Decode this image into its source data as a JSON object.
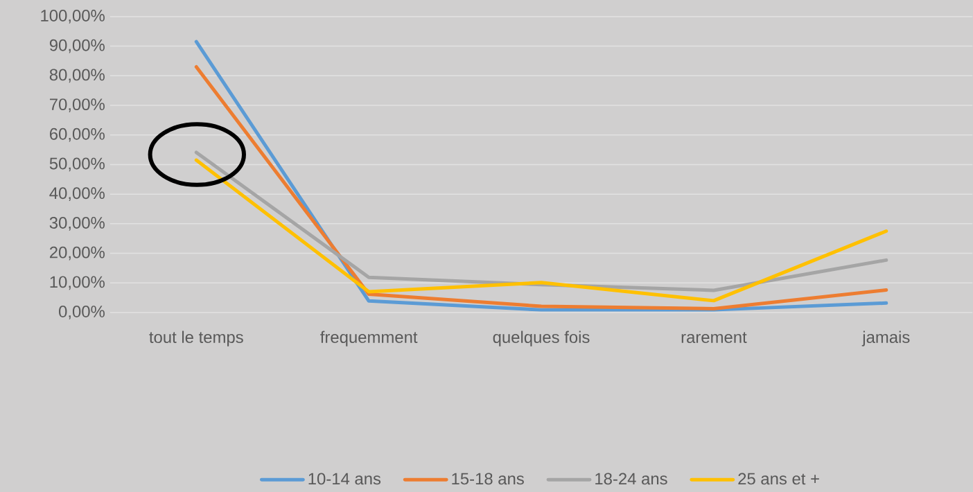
{
  "chart_data": {
    "type": "line",
    "categories": [
      "tout le temps",
      "frequemment",
      "quelques fois",
      "rarement",
      "jamais"
    ],
    "series": [
      {
        "name": "10-14 ans",
        "color": "#5b9bd5",
        "values": [
          91.5,
          3.9,
          0.9,
          0.9,
          3.2
        ]
      },
      {
        "name": "15-18 ans",
        "color": "#ed7d31",
        "values": [
          83.0,
          6.2,
          2.1,
          1.3,
          7.6
        ]
      },
      {
        "name": "18-24 ans",
        "color": "#a5a5a5",
        "values": [
          54.1,
          11.9,
          9.4,
          7.5,
          17.7
        ]
      },
      {
        "name": "25 ans et +",
        "color": "#ffc000",
        "values": [
          51.5,
          7.0,
          10.1,
          4.0,
          27.5
        ]
      }
    ],
    "ylim": [
      0,
      100
    ],
    "yticks": [
      {
        "value": 0,
        "label": "0,00%"
      },
      {
        "value": 10,
        "label": "10,00%"
      },
      {
        "value": 20,
        "label": "20,00%"
      },
      {
        "value": 30,
        "label": "30,00%"
      },
      {
        "value": 40,
        "label": "40,00%"
      },
      {
        "value": 50,
        "label": "50,00%"
      },
      {
        "value": 60,
        "label": "60,00%"
      },
      {
        "value": 70,
        "label": "70,00%"
      },
      {
        "value": 80,
        "label": "80,00%"
      },
      {
        "value": 90,
        "label": "90,00%"
      },
      {
        "value": 100,
        "label": "100,00%"
      }
    ],
    "grid": "y",
    "legend": "bottom",
    "marker": "none",
    "line_style": "solid"
  }
}
